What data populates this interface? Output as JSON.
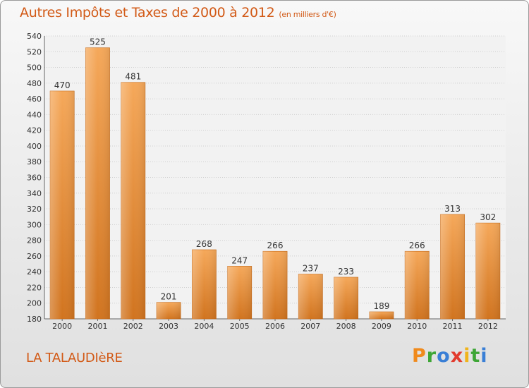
{
  "chart_data": {
    "type": "bar",
    "title": "Autres Impôts et Taxes de 2000 à 2012",
    "subtitle": "(en milliers d'€)",
    "categories": [
      "2000",
      "2001",
      "2002",
      "2003",
      "2004",
      "2005",
      "2006",
      "2007",
      "2008",
      "2009",
      "2010",
      "2011",
      "2012"
    ],
    "values": [
      470,
      525,
      481,
      201,
      268,
      247,
      266,
      237,
      233,
      189,
      266,
      313,
      302
    ],
    "xlabel": "",
    "ylabel": "",
    "ylim": [
      180,
      540
    ],
    "yticks": [
      180,
      200,
      220,
      240,
      260,
      280,
      300,
      320,
      340,
      360,
      380,
      400,
      420,
      440,
      460,
      480,
      500,
      520,
      540
    ],
    "grid": true,
    "data_labels": true,
    "bar_color": "#f0a050",
    "bar_color_dark": "#d47a24"
  },
  "footer": {
    "location": "LA TALAUDIèRE"
  },
  "logo": {
    "letters": [
      "P",
      "r",
      "o",
      "x",
      "i",
      "t",
      "i"
    ],
    "colors": [
      "#f08a1c",
      "#3ea636",
      "#3a7fd6",
      "#e23b2e",
      "#f0b41c",
      "#3ea636",
      "#3a7fd6"
    ]
  }
}
